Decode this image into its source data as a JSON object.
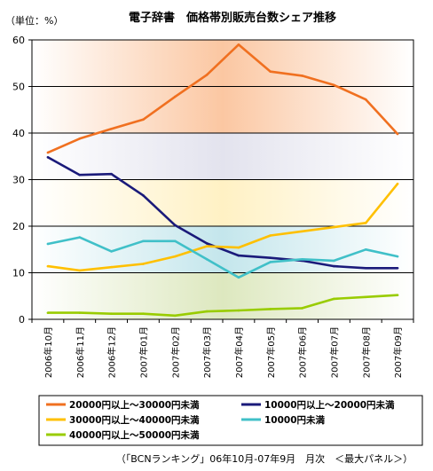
{
  "chart_data": {
    "type": "line",
    "title": "電子辞書　価格帯別販売台数シェア推移",
    "unit_label": "（単位：%）",
    "source_note": "（「BCNランキング」06年10月-07年9月　月次　＜最大パネル＞）",
    "ylim": [
      0,
      60
    ],
    "yticks": [
      0,
      10,
      20,
      30,
      40,
      50,
      60
    ],
    "grid": true,
    "legend_position": "bottom",
    "categories": [
      "2006年10月",
      "2006年11月",
      "2006年12月",
      "2007年01月",
      "2007年02月",
      "2007年03月",
      "2007年04月",
      "2007年05月",
      "2007年06月",
      "2007年07月",
      "2007年08月",
      "2007年09月"
    ],
    "series": [
      {
        "name": "20000円以上～30000円未満",
        "color": "#f07020",
        "values": [
          35.8,
          38.8,
          40.9,
          42.9,
          47.8,
          52.5,
          59.0,
          53.2,
          52.3,
          50.3,
          47.2,
          39.8
        ]
      },
      {
        "name": "10000円以上～20000円未満",
        "color": "#1a1a7a",
        "values": [
          34.8,
          31.0,
          31.2,
          26.6,
          20.2,
          16.3,
          13.7,
          13.2,
          12.6,
          11.4,
          11.0,
          11.0
        ]
      },
      {
        "name": "30000円以上～40000円未満",
        "color": "#ffc000",
        "values": [
          11.4,
          10.5,
          11.2,
          11.9,
          13.5,
          15.7,
          15.4,
          18.0,
          18.9,
          19.8,
          20.7,
          29.1
        ]
      },
      {
        "name": "10000円未満",
        "color": "#40c0c8",
        "values": [
          16.2,
          17.6,
          14.6,
          16.8,
          16.8,
          12.9,
          9.0,
          12.3,
          12.9,
          12.6,
          15.0,
          13.5
        ]
      },
      {
        "name": "40000円以上～50000円未満",
        "color": "#99cc00",
        "values": [
          1.4,
          1.4,
          1.2,
          1.2,
          0.8,
          1.7,
          1.9,
          2.2,
          2.4,
          4.4,
          4.8,
          5.2
        ]
      }
    ],
    "background_bands": [
      {
        "from": 0,
        "to": 10,
        "color": "#dde8bf"
      },
      {
        "from": 10,
        "to": 20,
        "color": "#c4e6ec"
      },
      {
        "from": 20,
        "to": 30,
        "color": "#fff1c4"
      },
      {
        "from": 30,
        "to": 40,
        "color": "#e3e3ee"
      },
      {
        "from": 40,
        "to": 60,
        "color": "#fbc7a2"
      }
    ]
  }
}
